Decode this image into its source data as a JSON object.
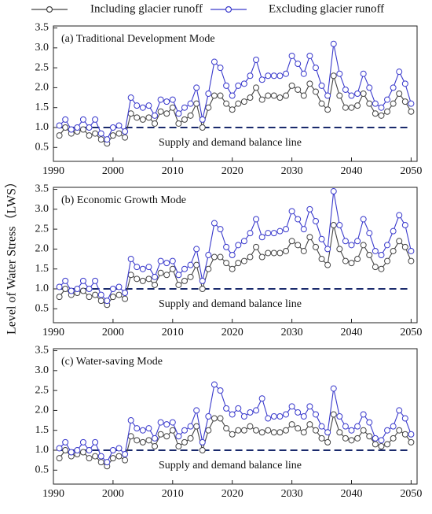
{
  "chart_data": [
    {
      "type": "line",
      "title": "(a) Traditional Development Mode",
      "x": [
        1991,
        1992,
        1993,
        1994,
        1995,
        1996,
        1997,
        1998,
        1999,
        2000,
        2001,
        2002,
        2003,
        2004,
        2005,
        2006,
        2007,
        2008,
        2009,
        2010,
        2011,
        2012,
        2013,
        2014,
        2015,
        2016,
        2017,
        2018,
        2019,
        2020,
        2021,
        2022,
        2023,
        2024,
        2025,
        2026,
        2027,
        2028,
        2029,
        2030,
        2031,
        2032,
        2033,
        2034,
        2035,
        2036,
        2037,
        2038,
        2039,
        2040,
        2041,
        2042,
        2043,
        2044,
        2045,
        2046,
        2047,
        2048,
        2049,
        2050
      ],
      "series": [
        {
          "name": "Including glacier runoff",
          "color": "#444444",
          "values": [
            0.8,
            1.0,
            0.85,
            0.9,
            0.95,
            0.8,
            0.85,
            0.7,
            0.6,
            0.8,
            0.85,
            0.75,
            1.35,
            1.25,
            1.2,
            1.25,
            1.1,
            1.4,
            1.35,
            1.5,
            1.1,
            1.2,
            1.3,
            1.6,
            1.0,
            1.5,
            1.8,
            1.8,
            1.6,
            1.45,
            1.6,
            1.65,
            1.75,
            2.0,
            1.7,
            1.8,
            1.8,
            1.75,
            1.8,
            2.05,
            1.95,
            1.8,
            2.1,
            1.9,
            1.6,
            1.45,
            2.3,
            1.8,
            1.5,
            1.5,
            1.55,
            1.85,
            1.6,
            1.35,
            1.3,
            1.4,
            1.6,
            1.85,
            1.65,
            1.4
          ]
        },
        {
          "name": "Excluding glacier runoff",
          "color": "#3a3acc",
          "values": [
            1.05,
            1.2,
            0.95,
            1.0,
            1.2,
            1.0,
            1.2,
            0.85,
            0.7,
            1.0,
            1.05,
            0.9,
            1.75,
            1.55,
            1.5,
            1.55,
            1.3,
            1.7,
            1.65,
            1.7,
            1.35,
            1.5,
            1.6,
            2.0,
            1.2,
            1.85,
            2.65,
            2.5,
            2.05,
            1.8,
            2.05,
            2.1,
            2.3,
            2.7,
            2.2,
            2.3,
            2.3,
            2.3,
            2.35,
            2.8,
            2.6,
            2.35,
            2.8,
            2.5,
            2.05,
            1.8,
            3.1,
            2.35,
            1.95,
            1.8,
            1.85,
            2.35,
            2.0,
            1.6,
            1.5,
            1.7,
            2.0,
            2.4,
            2.1,
            1.6
          ]
        }
      ],
      "reference_line": {
        "value": 1.0,
        "label": "Supply and demand balance line",
        "color": "#1a2a6c"
      },
      "xlim": [
        1990,
        2051
      ],
      "xticks": [
        1990,
        2000,
        2010,
        2020,
        2030,
        2040,
        2050
      ],
      "ylim": [
        0.15,
        3.55
      ],
      "yticks": [
        0.5,
        {
          "value": 1.0,
          "label": "1.0"
        },
        1.5,
        {
          "value": 2.0,
          "label": "2.0"
        },
        2.5,
        {
          "value": 3.0,
          "label": "3.0"
        },
        3.5
      ]
    },
    {
      "type": "line",
      "title": "(b)  Economic Growth Mode",
      "ylabel": "Level of Water Stress（LWS）",
      "x": [
        1991,
        1992,
        1993,
        1994,
        1995,
        1996,
        1997,
        1998,
        1999,
        2000,
        2001,
        2002,
        2003,
        2004,
        2005,
        2006,
        2007,
        2008,
        2009,
        2010,
        2011,
        2012,
        2013,
        2014,
        2015,
        2016,
        2017,
        2018,
        2019,
        2020,
        2021,
        2022,
        2023,
        2024,
        2025,
        2026,
        2027,
        2028,
        2029,
        2030,
        2031,
        2032,
        2033,
        2034,
        2035,
        2036,
        2037,
        2038,
        2039,
        2040,
        2041,
        2042,
        2043,
        2044,
        2045,
        2046,
        2047,
        2048,
        2049,
        2050
      ],
      "series": [
        {
          "name": "Including glacier runoff",
          "color": "#444444",
          "values": [
            0.8,
            1.0,
            0.85,
            0.9,
            0.95,
            0.8,
            0.85,
            0.7,
            0.6,
            0.8,
            0.85,
            0.75,
            1.35,
            1.25,
            1.2,
            1.25,
            1.1,
            1.4,
            1.35,
            1.5,
            1.1,
            1.2,
            1.3,
            1.6,
            1.0,
            1.5,
            1.8,
            1.8,
            1.65,
            1.5,
            1.65,
            1.7,
            1.8,
            2.05,
            1.8,
            1.9,
            1.9,
            1.9,
            1.95,
            2.2,
            2.1,
            1.95,
            2.3,
            2.05,
            1.75,
            1.6,
            2.6,
            2.0,
            1.7,
            1.65,
            1.75,
            2.1,
            1.85,
            1.55,
            1.5,
            1.7,
            1.95,
            2.2,
            2.05,
            1.7
          ]
        },
        {
          "name": "Excluding glacier runoff",
          "color": "#3a3acc",
          "values": [
            1.05,
            1.2,
            0.95,
            1.0,
            1.2,
            1.0,
            1.2,
            0.85,
            0.7,
            1.0,
            1.05,
            0.9,
            1.75,
            1.55,
            1.5,
            1.55,
            1.3,
            1.7,
            1.65,
            1.7,
            1.35,
            1.5,
            1.6,
            2.0,
            1.2,
            1.85,
            2.65,
            2.5,
            2.05,
            1.85,
            2.1,
            2.2,
            2.4,
            2.75,
            2.3,
            2.4,
            2.4,
            2.45,
            2.5,
            2.95,
            2.75,
            2.5,
            3.0,
            2.7,
            2.25,
            2.0,
            3.45,
            2.6,
            2.2,
            2.1,
            2.2,
            2.75,
            2.4,
            1.95,
            1.85,
            2.1,
            2.45,
            2.85,
            2.6,
            1.95
          ]
        }
      ],
      "reference_line": {
        "value": 1.0,
        "label": "Supply and demand balance line",
        "color": "#1a2a6c"
      },
      "xlim": [
        1990,
        2051
      ],
      "xticks": [
        1990,
        2000,
        2010,
        2020,
        2030,
        2040,
        2050
      ],
      "ylim": [
        0.15,
        3.55
      ],
      "yticks": [
        0.5,
        {
          "value": 1.0,
          "label": "1.0"
        },
        1.5,
        {
          "value": 2.0,
          "label": "2.0"
        },
        2.5,
        {
          "value": 3.0,
          "label": "3.0"
        },
        3.5
      ]
    },
    {
      "type": "line",
      "title": "(c) Water-saving Mode",
      "x": [
        1991,
        1992,
        1993,
        1994,
        1995,
        1996,
        1997,
        1998,
        1999,
        2000,
        2001,
        2002,
        2003,
        2004,
        2005,
        2006,
        2007,
        2008,
        2009,
        2010,
        2011,
        2012,
        2013,
        2014,
        2015,
        2016,
        2017,
        2018,
        2019,
        2020,
        2021,
        2022,
        2023,
        2024,
        2025,
        2026,
        2027,
        2028,
        2029,
        2030,
        2031,
        2032,
        2033,
        2034,
        2035,
        2036,
        2037,
        2038,
        2039,
        2040,
        2041,
        2042,
        2043,
        2044,
        2045,
        2046,
        2047,
        2048,
        2049,
        2050
      ],
      "series": [
        {
          "name": "Including glacier runoff",
          "color": "#444444",
          "values": [
            0.8,
            1.0,
            0.85,
            0.9,
            0.95,
            0.8,
            0.85,
            0.7,
            0.6,
            0.8,
            0.85,
            0.75,
            1.35,
            1.25,
            1.2,
            1.25,
            1.1,
            1.4,
            1.35,
            1.5,
            1.1,
            1.2,
            1.3,
            1.6,
            1.0,
            1.5,
            1.8,
            1.8,
            1.55,
            1.4,
            1.5,
            1.5,
            1.6,
            1.5,
            1.45,
            1.5,
            1.45,
            1.45,
            1.5,
            1.65,
            1.55,
            1.45,
            1.65,
            1.5,
            1.3,
            1.2,
            1.9,
            1.45,
            1.3,
            1.25,
            1.3,
            1.5,
            1.35,
            1.15,
            1.1,
            1.15,
            1.3,
            1.5,
            1.4,
            1.2
          ]
        },
        {
          "name": "Excluding glacier runoff",
          "color": "#3a3acc",
          "values": [
            1.05,
            1.2,
            0.95,
            1.0,
            1.2,
            1.0,
            1.2,
            0.85,
            0.7,
            1.0,
            1.05,
            0.9,
            1.75,
            1.55,
            1.5,
            1.55,
            1.3,
            1.7,
            1.65,
            1.7,
            1.35,
            1.5,
            1.6,
            2.0,
            1.2,
            1.85,
            2.65,
            2.5,
            2.05,
            1.9,
            2.05,
            1.85,
            1.95,
            2.0,
            2.3,
            1.8,
            1.85,
            1.85,
            1.9,
            2.1,
            1.95,
            1.85,
            2.1,
            1.9,
            1.6,
            1.45,
            2.55,
            1.85,
            1.6,
            1.5,
            1.6,
            1.9,
            1.7,
            1.3,
            1.25,
            1.5,
            1.6,
            2.0,
            1.8,
            1.4
          ]
        }
      ],
      "reference_line": {
        "value": 1.0,
        "label": "Supply and demand balance line",
        "color": "#1a2a6c"
      },
      "xlim": [
        1990,
        2051
      ],
      "xticks": [
        1990,
        2000,
        2010,
        2020,
        2030,
        2040,
        2050
      ],
      "ylim": [
        0.15,
        3.55
      ],
      "yticks": [
        0.5,
        {
          "value": 1.0,
          "label": "1.0"
        },
        1.5,
        {
          "value": 2.0,
          "label": "2.0"
        },
        2.5,
        {
          "value": 3.0,
          "label": "3.0"
        },
        3.5
      ]
    }
  ]
}
